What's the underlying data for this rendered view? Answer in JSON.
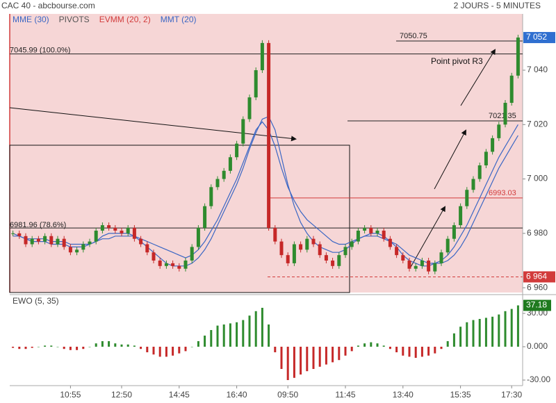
{
  "chart_data": [
    {
      "type": "candlestick",
      "title": "CAC 40 - abcbourse.com",
      "subtitle": "2 JOURS - 5 MINUTES",
      "categories": [
        null,
        null,
        null,
        null,
        null,
        null,
        null,
        null,
        null,
        "10:55",
        null,
        null,
        null,
        null,
        null,
        null,
        null,
        "12:50",
        null,
        null,
        null,
        null,
        null,
        null,
        null,
        null,
        "14:45",
        null,
        null,
        null,
        null,
        null,
        null,
        null,
        null,
        "16:40",
        null,
        null,
        null,
        null,
        null,
        null,
        null,
        "09:50",
        null,
        null,
        null,
        null,
        null,
        null,
        null,
        null,
        "11:45",
        null,
        null,
        null,
        null,
        null,
        null,
        null,
        null,
        "13:40",
        null,
        null,
        null,
        null,
        null,
        null,
        null,
        null,
        "15:35",
        null,
        null,
        null,
        null,
        null,
        null,
        null,
        "17:30",
        null
      ],
      "values": [
        6980,
        6979,
        6976,
        6978,
        6977,
        6979,
        6976,
        6978,
        6975,
        6973,
        6974,
        6976,
        6977,
        6981,
        6983,
        6982,
        6981,
        6980,
        6982,
        6978,
        6976,
        6973,
        6970,
        6968,
        6969,
        6968,
        6967,
        6970,
        6975,
        6982,
        6990,
        6997,
        7000,
        7003,
        7008,
        7013,
        7022,
        7030,
        7040,
        7050,
        6982,
        6977,
        6972,
        6969,
        6976,
        6974,
        6978,
        6976,
        6972,
        6970,
        6968,
        6972,
        6975,
        6977,
        6981,
        6982,
        6980,
        6981,
        6978,
        6975,
        6972,
        6970,
        6967,
        6968,
        6970,
        6966,
        6969,
        6973,
        6978,
        6983,
        6990,
        6996,
        7000,
        7005,
        7010,
        7015,
        7020,
        7028,
        7038,
        7052
      ],
      "up_color": "#2e8b2e",
      "down_color": "#c62828",
      "series": [
        {
          "name": "MME (30)",
          "color": "#3a66c4",
          "values": [
            6979,
            6979,
            6978,
            6978,
            6978,
            6978,
            6977,
            6977,
            6977,
            6976,
            6976,
            6976,
            6976,
            6977,
            6978,
            6978,
            6979,
            6979,
            6979,
            6979,
            6978,
            6977,
            6976,
            6975,
            6974,
            6973,
            6972,
            6971,
            6972,
            6974,
            6977,
            6981,
            6985,
            6990,
            6995,
            7000,
            7006,
            7012,
            7018,
            7021,
            7018,
            7012,
            7004,
            6997,
            6992,
            6988,
            6985,
            6983,
            6981,
            6979,
            6977,
            6976,
            6976,
            6977,
            6978,
            6979,
            6979,
            6979,
            6978,
            6977,
            6976,
            6974,
            6972,
            6971,
            6970,
            6969,
            6969,
            6970,
            6972,
            6975,
            6979,
            6983,
            6988,
            6993,
            6998,
            7003,
            7008,
            7012,
            7016,
            7020
          ]
        },
        {
          "name": "MMT (20)",
          "color": "#3a66c4",
          "values": [
            6980,
            6979,
            6978,
            6977,
            6977,
            6977,
            6976,
            6976,
            6976,
            6975,
            6975,
            6975,
            6976,
            6977,
            6979,
            6980,
            6980,
            6980,
            6980,
            6979,
            6977,
            6975,
            6973,
            6971,
            6969,
            6968,
            6968,
            6968,
            6969,
            6971,
            6974,
            6978,
            6983,
            6988,
            6993,
            6998,
            7004,
            7011,
            7017,
            7022,
            7023,
            7018,
            7008,
            6998,
            6990,
            6984,
            6980,
            6977,
            6975,
            6974,
            6973,
            6973,
            6974,
            6976,
            6978,
            6979,
            6980,
            6980,
            6979,
            6977,
            6975,
            6972,
            6970,
            6969,
            6968,
            6968,
            6969,
            6969,
            6970,
            6972,
            6975,
            6979,
            6984,
            6989,
            6994,
            6999,
            7004,
            7008,
            7012,
            7016
          ]
        }
      ],
      "indicators": [
        {
          "name": "PIVOTS",
          "color": "#555555"
        },
        {
          "name": "EVMM (20, 2)",
          "color": "#d23b3b"
        }
      ],
      "levels": [
        {
          "value": 7050.75,
          "label": "7050.75",
          "color": "#222222"
        },
        {
          "value": 7045.99,
          "label": "7045.99  (100.0%)",
          "color": "#222222"
        },
        {
          "value": 7021.35,
          "label": "7021.35",
          "color": "#222222"
        },
        {
          "value": 6993.03,
          "label": "6993.03",
          "color": "#d23b3b"
        },
        {
          "value": 6981.96,
          "label": "6981.96  (78.6%)",
          "color": "#222222"
        },
        {
          "value": 6964,
          "label": "6 964",
          "color": "#d23b3b"
        }
      ],
      "last_price": {
        "value": 7052,
        "label": "7 052"
      },
      "annotations": [
        "Point pivot R3"
      ],
      "ylim": [
        6958.5,
        7060.7
      ],
      "yticks": [
        {
          "value": 6960,
          "label": "6 960"
        },
        {
          "value": 6980,
          "label": "6 980"
        },
        {
          "value": 7000,
          "label": "7 000"
        },
        {
          "value": 7020,
          "label": "7 020"
        },
        {
          "value": 7040,
          "label": "7 040"
        }
      ]
    },
    {
      "type": "bar",
      "title": "EWO (5, 35)",
      "up_color": "#2e8b2e",
      "down_color": "#c62828",
      "values": [
        -1,
        -2,
        -2,
        -1,
        0,
        1,
        1,
        0,
        -2,
        -3,
        -3,
        -2,
        0,
        3,
        5,
        5,
        3,
        2,
        2,
        1,
        -2,
        -5,
        -7,
        -9,
        -9,
        -8,
        -6,
        -4,
        0,
        5,
        10,
        15,
        19,
        20,
        21,
        22,
        24,
        28,
        32,
        35,
        20,
        -5,
        -20,
        -30,
        -28,
        -25,
        -22,
        -20,
        -18,
        -16,
        -14,
        -12,
        -8,
        -4,
        1,
        3,
        4,
        3,
        1,
        -2,
        -5,
        -8,
        -9,
        -10,
        -9,
        -8,
        -6,
        -2,
        5,
        12,
        18,
        22,
        24,
        25,
        26,
        27,
        29,
        32,
        34,
        37.18
      ],
      "ylim": [
        -33.75,
        46.25
      ],
      "yticks": [
        {
          "value": -30,
          "label": "-30.00"
        },
        {
          "value": 0,
          "label": "0.000"
        },
        {
          "value": 30,
          "label": "30.00"
        }
      ]
    }
  ]
}
